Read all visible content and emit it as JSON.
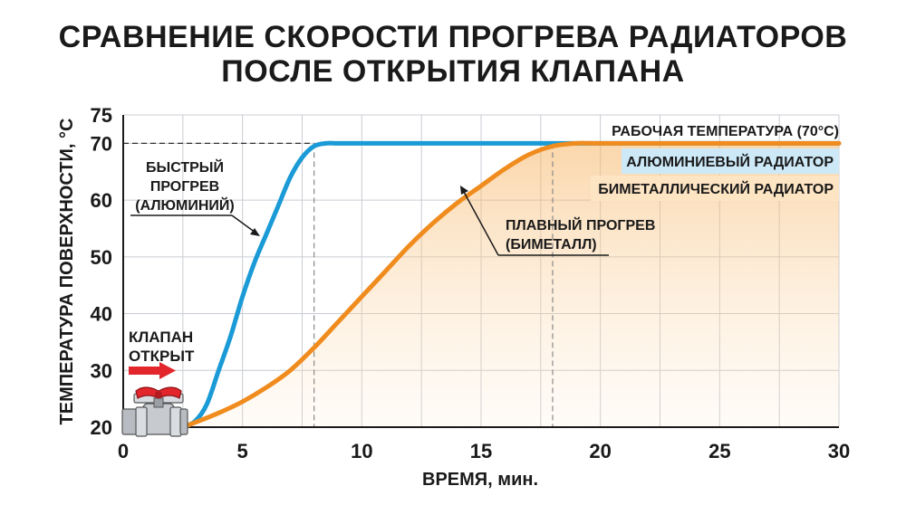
{
  "title": {
    "line1": "СРАВНЕНИЕ СКОРОСТИ ПРОГРЕВА РАДИАТОРОВ",
    "line2": "ПОСЛЕ ОТКРЫТИЯ КЛАПАНА"
  },
  "colors": {
    "aluminium": "#1a9ad6",
    "bimetal": "#f08c1e",
    "bimetal_fill": "#fbd9a8",
    "aluminium_label_bg": "#cde9f7",
    "bimetal_label_bg": "#fde4c3",
    "grid": "#c9ccd3",
    "arrow": "#e2262b"
  },
  "annotations": {
    "fast_line1": "БЫСТРЫЙ",
    "fast_line2": "ПРОГРЕВ",
    "fast_line3": "(АЛЮМИНИЙ)",
    "smooth_line1": "ПЛАВНЫЙ ПРОГРЕВ",
    "smooth_line2": "(БИМЕТАЛЛ)",
    "valve_line1": "КЛАПАН",
    "valve_line2": "ОТКРЫТ",
    "working_temp": "РАБОЧАЯ ТЕМПЕРАТУРА (70°С)"
  },
  "valve_icon": "ball-valve-icon",
  "chart_data": {
    "type": "line",
    "xlabel": "ВРЕМЯ, мин.",
    "ylabel": "ТЕМПЕРАТУРА ПОВЕРХНОСТИ, °С",
    "xlim": [
      0,
      30
    ],
    "ylim": [
      20,
      75
    ],
    "x_ticks": [
      0,
      5,
      10,
      15,
      20,
      25,
      30
    ],
    "y_ticks": [
      20,
      30,
      40,
      50,
      60,
      70,
      75
    ],
    "grid": true,
    "legend_position": "right",
    "reference_line": {
      "y": 70,
      "label": "РАБОЧАЯ ТЕМПЕРАТУРА (70°С)"
    },
    "series": [
      {
        "name": "АЛЮМИНИЕВЫЙ РАДИАТОР",
        "color": "#1a9ad6",
        "x": [
          2.5,
          3.0,
          3.5,
          4.0,
          4.5,
          5.0,
          5.5,
          6.0,
          6.5,
          7.0,
          7.5,
          8.0,
          8.5,
          9.0,
          10,
          15,
          20,
          25,
          30
        ],
        "y": [
          20,
          21,
          24,
          30,
          36,
          43,
          49,
          54,
          59,
          64,
          67.5,
          69.5,
          70,
          70,
          70,
          70,
          70,
          70,
          70
        ]
      },
      {
        "name": "БИМЕТАЛЛИЧЕСКИЙ РАДИАТОР",
        "color": "#f08c1e",
        "x": [
          2.5,
          3,
          4,
          5,
          6,
          7,
          8,
          9,
          10,
          11,
          12,
          13,
          14,
          15,
          16,
          17,
          18,
          19,
          20,
          25,
          30
        ],
        "y": [
          20,
          20.8,
          22.5,
          24.5,
          27,
          30,
          34,
          38.5,
          43,
          47.5,
          52,
          56,
          59.5,
          62.5,
          65.5,
          68,
          69.5,
          70,
          70,
          70,
          70
        ]
      }
    ],
    "markers": [
      {
        "x": 8,
        "y": 70,
        "series": "АЛЮМИНИЕВЫЙ РАДИАТОР"
      },
      {
        "x": 18,
        "y": 70,
        "series": "БИМЕТАЛЛИЧЕСКИЙ РАДИАТОР"
      }
    ]
  }
}
